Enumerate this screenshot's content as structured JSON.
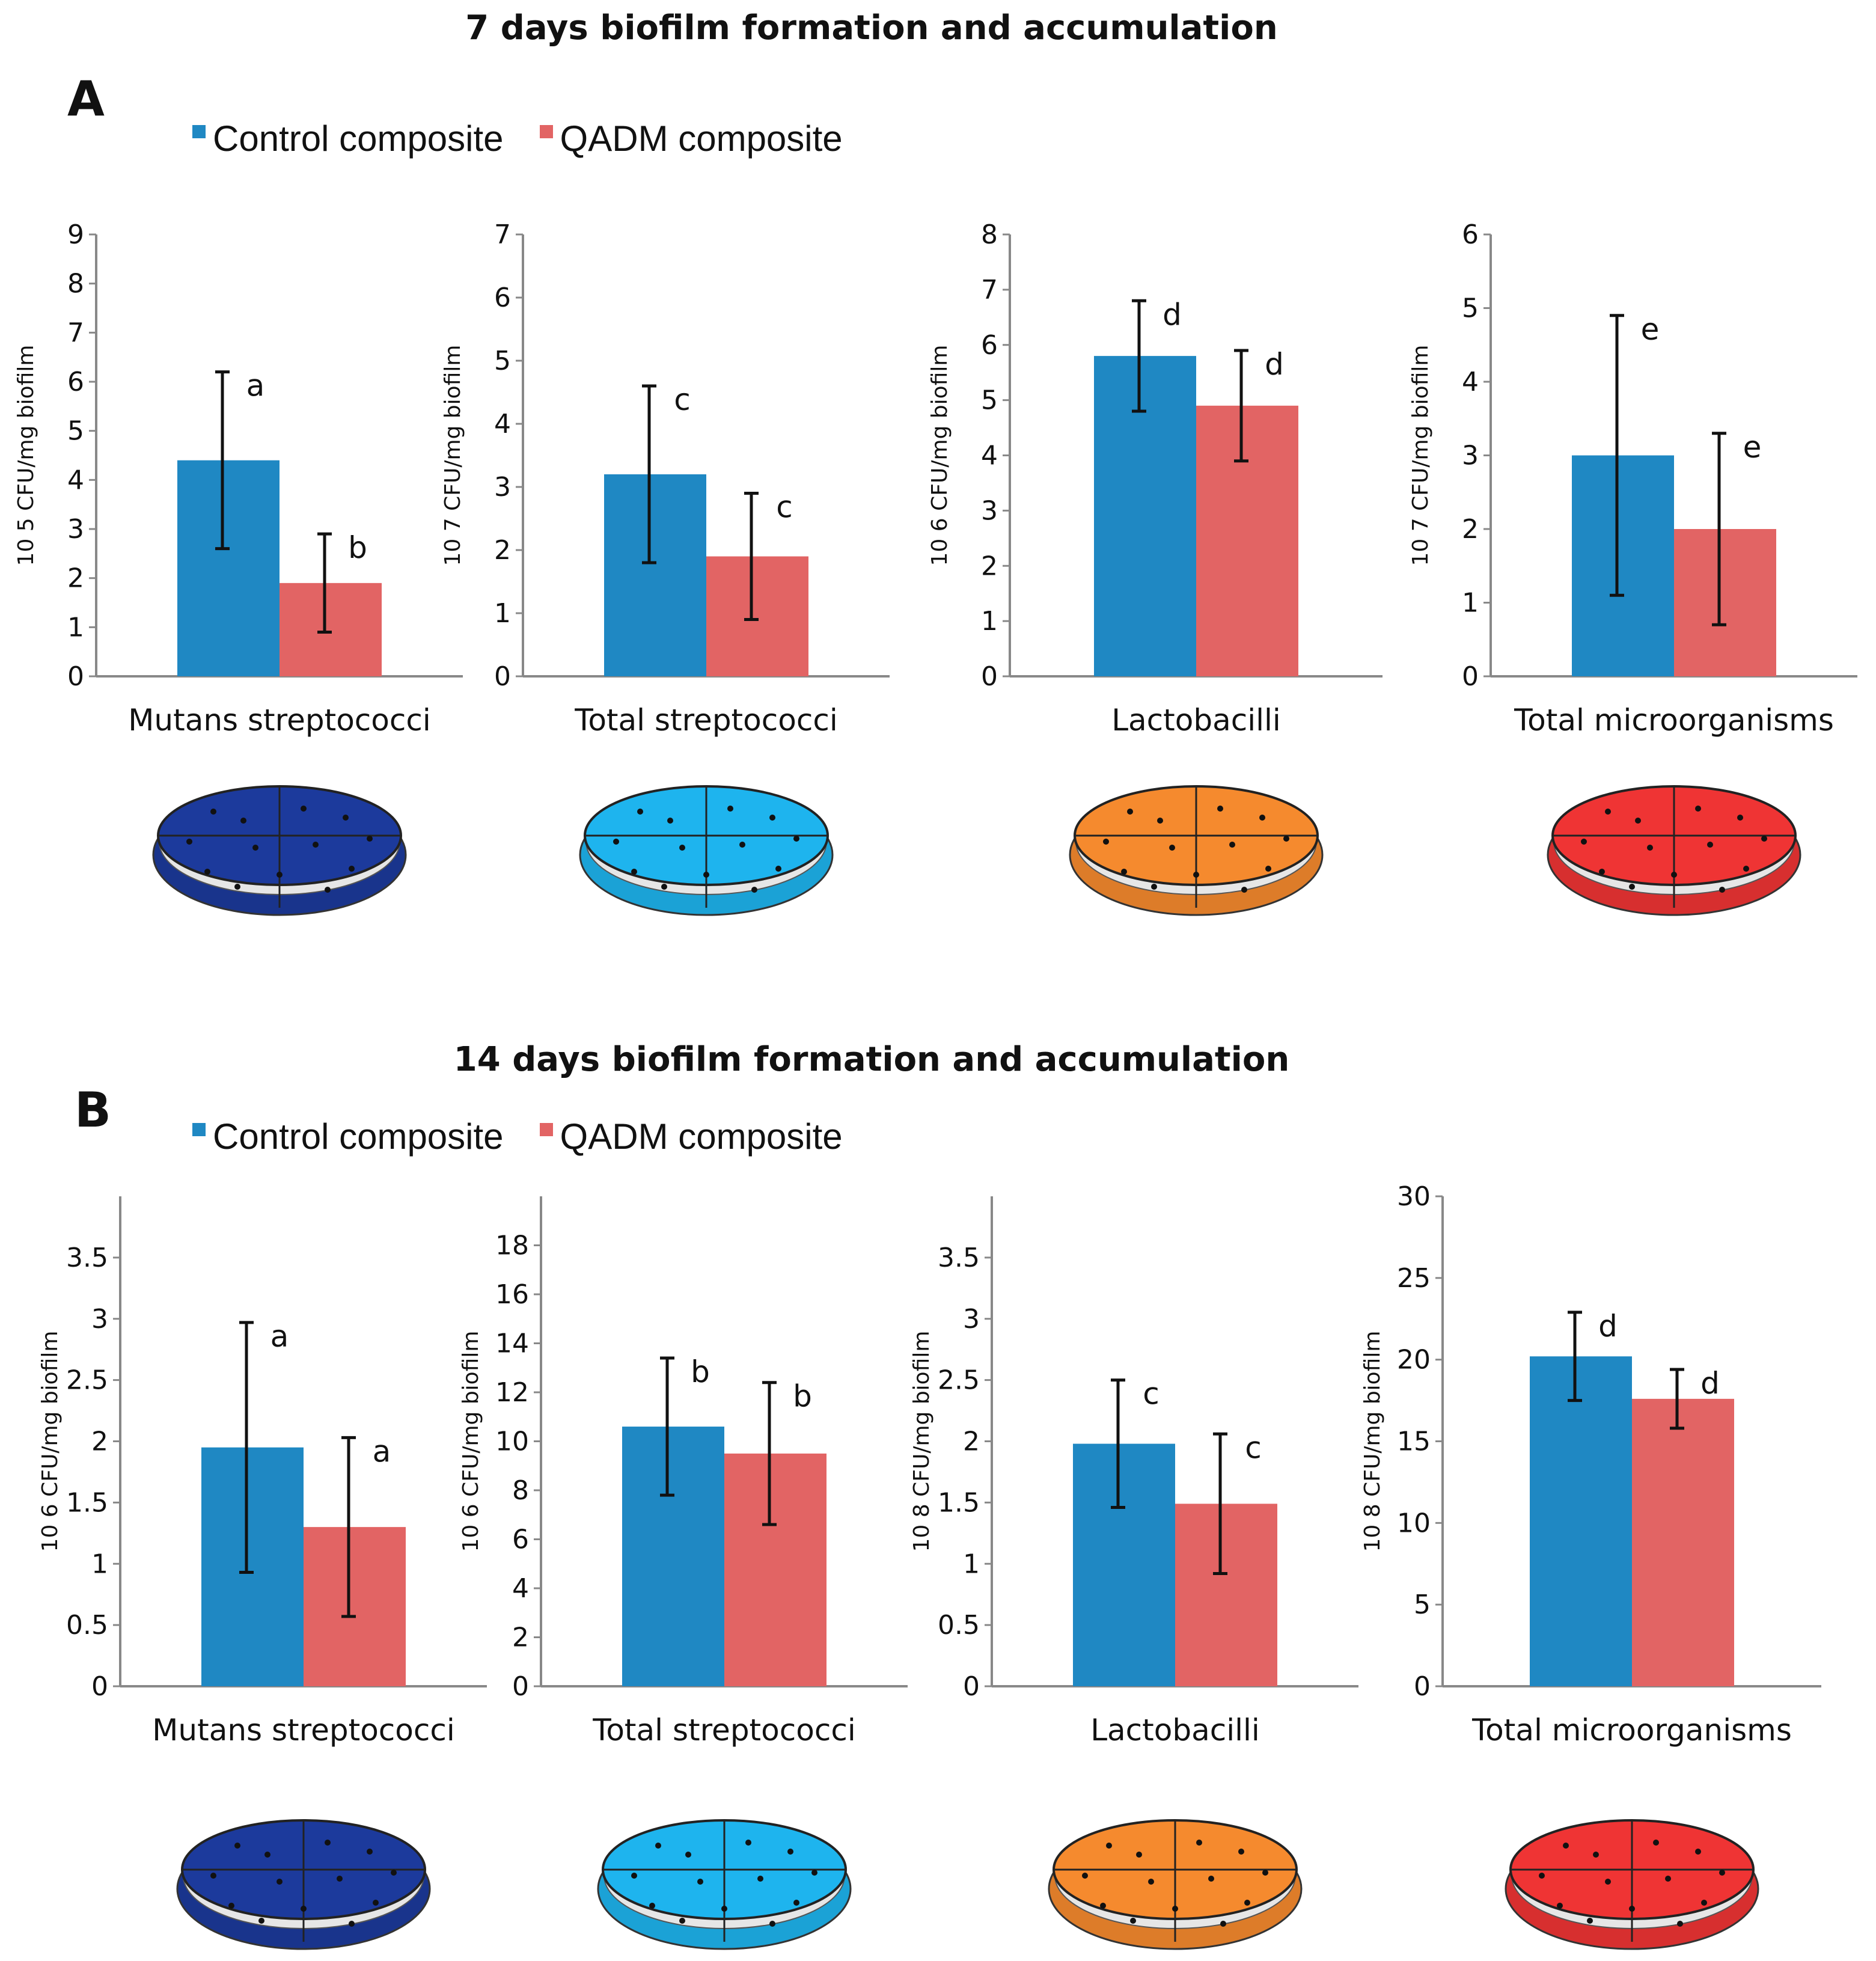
{
  "colors": {
    "control": "#1F88C3",
    "qadm": "#E26464"
  },
  "legend": {
    "control_label": "Control composite",
    "qadm_label": "QADM composite"
  },
  "chart_data": [
    {
      "type": "bar",
      "panel": "A",
      "title": "7 days biofilm formation and accumulation",
      "series_names": [
        "Control composite",
        "QADM composite"
      ],
      "charts": [
        {
          "xlabel": "Mutans streptococci",
          "ylabel": "10 5 CFU/mg biofilm",
          "ylim": [
            0,
            9
          ],
          "ticks": [
            "0",
            "1",
            "2",
            "3",
            "4",
            "5",
            "6",
            "7",
            "8",
            "9"
          ],
          "values": [
            4.4,
            1.9
          ],
          "errors": [
            1.8,
            1.0
          ],
          "sig": [
            "a",
            "b"
          ],
          "plate_color": "#1C3A9C"
        },
        {
          "xlabel": "Total streptococci",
          "ylabel": "10 7 CFU/mg biofilm",
          "ylim": [
            0,
            7
          ],
          "ticks": [
            "0",
            "1",
            "2",
            "3",
            "4",
            "5",
            "6",
            "7"
          ],
          "values": [
            3.2,
            1.9
          ],
          "errors": [
            1.4,
            1.0
          ],
          "sig": [
            "c",
            "c"
          ],
          "plate_color": "#1EB4EE"
        },
        {
          "xlabel": "Lactobacilli",
          "ylabel": "10 6 CFU/mg biofilm",
          "ylim": [
            0,
            8
          ],
          "ticks": [
            "0",
            "1",
            "2",
            "3",
            "4",
            "5",
            "6",
            "7",
            "8"
          ],
          "values": [
            5.8,
            4.9
          ],
          "errors": [
            1.0,
            1.0
          ],
          "sig": [
            "d",
            "d"
          ],
          "plate_color": "#F58A2E"
        },
        {
          "xlabel": "Total microorganisms",
          "ylabel": "10 7 CFU/mg biofilm",
          "ylim": [
            0,
            6
          ],
          "ticks": [
            "0",
            "1",
            "2",
            "3",
            "4",
            "5",
            "6"
          ],
          "values": [
            3.0,
            2.0
          ],
          "errors": [
            1.9,
            1.3
          ],
          "sig": [
            "e",
            "e"
          ],
          "plate_color": "#EF3434"
        }
      ]
    },
    {
      "type": "bar",
      "panel": "B",
      "title": "14 days biofilm formation and accumulation",
      "series_names": [
        "Control composite",
        "QADM composite"
      ],
      "charts": [
        {
          "xlabel": "Mutans streptococci",
          "ylabel": "10 6 CFU/mg biofilm",
          "ylim": [
            0,
            4
          ],
          "ticks": [
            "0",
            "0.5",
            "1",
            "1.5",
            "2",
            "2.5",
            "3",
            "3.5"
          ],
          "values": [
            1.95,
            1.3
          ],
          "errors": [
            1.02,
            0.73
          ],
          "sig": [
            "a",
            "a"
          ],
          "plate_color": "#1C3A9C"
        },
        {
          "xlabel": "Total streptococci",
          "ylabel": "10 6 CFU/mg biofilm",
          "ylim": [
            0,
            20
          ],
          "ticks": [
            "0",
            "2",
            "4",
            "6",
            "8",
            "10",
            "12",
            "14",
            "16",
            "18"
          ],
          "values": [
            10.6,
            9.5
          ],
          "errors": [
            2.8,
            2.9
          ],
          "sig": [
            "b",
            "b"
          ],
          "plate_color": "#1EB4EE"
        },
        {
          "xlabel": "Lactobacilli",
          "ylabel": "10 8 CFU/mg biofilm",
          "ylim": [
            0,
            4
          ],
          "ticks": [
            "0",
            "0.5",
            "1",
            "1.5",
            "2",
            "2.5",
            "3",
            "3.5"
          ],
          "values": [
            1.98,
            1.49
          ],
          "errors": [
            0.52,
            0.57
          ],
          "sig": [
            "c",
            "c"
          ],
          "plate_color": "#F58A2E"
        },
        {
          "xlabel": "Total microorganisms",
          "ylabel": "10 8 CFU/mg biofilm",
          "ylim": [
            0,
            30
          ],
          "ticks": [
            "0",
            "5",
            "10",
            "15",
            "20",
            "25",
            "30"
          ],
          "values": [
            20.2,
            17.6
          ],
          "errors": [
            2.7,
            1.8
          ],
          "sig": [
            "d",
            "d"
          ],
          "plate_color": "#EF3434"
        }
      ]
    }
  ]
}
